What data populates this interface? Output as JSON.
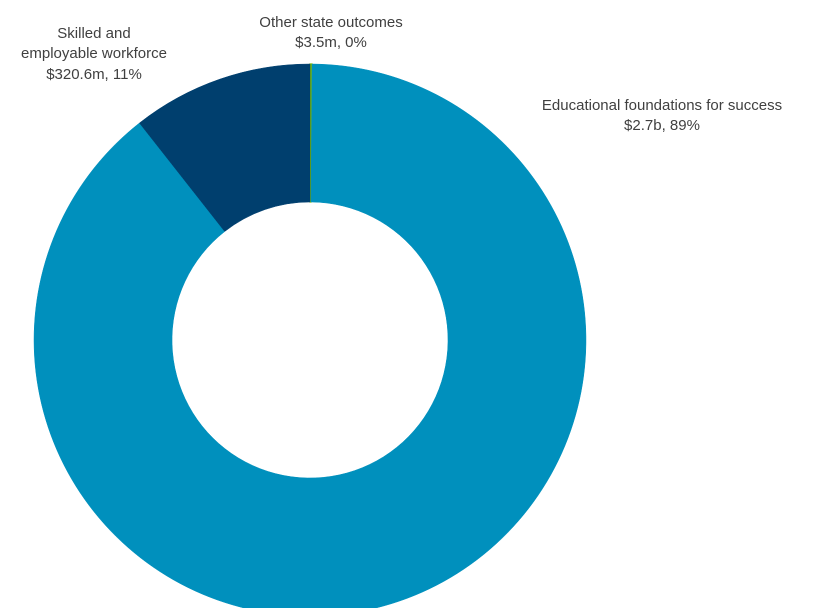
{
  "chart_data": {
    "type": "pie",
    "variant": "donut",
    "title": "",
    "slices": [
      {
        "category": "Educational foundations for success",
        "value": 2700,
        "percent": 89,
        "value_label": "$2.7b, 89%",
        "color": "#0090BD"
      },
      {
        "category": "Other state outcomes",
        "value": 3.5,
        "percent": 0,
        "value_label": "$3.5m, 0%",
        "color": "#7AB800"
      },
      {
        "category": "Skilled and employable workforce",
        "category_lines": [
          "Skilled and",
          "employable workforce"
        ],
        "value": 320.6,
        "percent": 11,
        "value_label": "$320.6m, 11%",
        "color": "#003F6E"
      }
    ],
    "slice_order": [
      "Other state outcomes",
      "Educational foundations for success",
      "Skilled and employable workforce"
    ],
    "legend": "none",
    "units_note": "values in $ millions"
  }
}
